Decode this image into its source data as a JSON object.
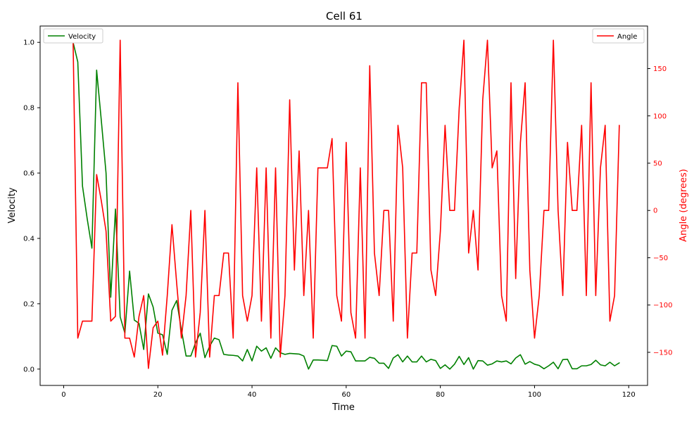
{
  "chart_data": {
    "type": "line",
    "title": "Cell 61",
    "xlabel": "Time",
    "ylabel_left": "Velocity",
    "ylabel_right": "Angle (degrees)",
    "xlim": [
      -5,
      124
    ],
    "ylim_left": [
      -0.05,
      1.05
    ],
    "ylim_right": [
      -185,
      195
    ],
    "x_ticks": [
      0,
      20,
      40,
      60,
      80,
      100,
      120
    ],
    "y_left_ticks": [
      0.0,
      0.2,
      0.4,
      0.6,
      0.8,
      1.0
    ],
    "y_left_tick_labels": [
      "0.0",
      "0.2",
      "0.4",
      "0.6",
      "0.8",
      "1.0"
    ],
    "y_right_ticks": [
      -150,
      -100,
      -50,
      0,
      50,
      100,
      150
    ],
    "grid": false,
    "colors": {
      "velocity": "#008000",
      "angle": "#ff0000"
    },
    "series": [
      {
        "name": "Velocity",
        "axis": "left",
        "legend_position": "top-left",
        "x": [
          1,
          2,
          3,
          4,
          5,
          6,
          7,
          8,
          9,
          10,
          11,
          12,
          13,
          14,
          15,
          16,
          17,
          18,
          19,
          20,
          21,
          22,
          23,
          24,
          25,
          26,
          27,
          28,
          29,
          30,
          31,
          32,
          33,
          34,
          35,
          36,
          37,
          38,
          39,
          40,
          41,
          42,
          43,
          44,
          45,
          46,
          47,
          48,
          49,
          50,
          51,
          52,
          53,
          54,
          55,
          56,
          57,
          58,
          59,
          60,
          61,
          62,
          63,
          64,
          65,
          66,
          67,
          68,
          69,
          70,
          71,
          72,
          73,
          74,
          75,
          76,
          77,
          78,
          79,
          80,
          81,
          82,
          83,
          84,
          85,
          86,
          87,
          88,
          89,
          90,
          91,
          92,
          93,
          94,
          95,
          96,
          97,
          98,
          99,
          100,
          101,
          102,
          103,
          104,
          105,
          106,
          107,
          108,
          109,
          110,
          111,
          112,
          113,
          114,
          115,
          116,
          117,
          118
        ],
        "values": [
          1.0,
          1.0,
          0.94,
          0.56,
          0.46,
          0.37,
          0.915,
          0.76,
          0.6,
          0.22,
          0.49,
          0.16,
          0.11,
          0.3,
          0.15,
          0.14,
          0.06,
          0.23,
          0.19,
          0.11,
          0.105,
          0.045,
          0.18,
          0.21,
          0.12,
          0.04,
          0.04,
          0.08,
          0.11,
          0.035,
          0.07,
          0.095,
          0.09,
          0.045,
          0.043,
          0.042,
          0.04,
          0.025,
          0.06,
          0.025,
          0.07,
          0.055,
          0.065,
          0.033,
          0.065,
          0.05,
          0.045,
          0.048,
          0.047,
          0.046,
          0.04,
          0.0,
          0.028,
          0.028,
          0.027,
          0.026,
          0.072,
          0.07,
          0.04,
          0.055,
          0.053,
          0.025,
          0.025,
          0.025,
          0.036,
          0.033,
          0.018,
          0.018,
          0.002,
          0.034,
          0.044,
          0.022,
          0.04,
          0.022,
          0.022,
          0.04,
          0.022,
          0.03,
          0.026,
          0.002,
          0.013,
          0.0,
          0.015,
          0.039,
          0.014,
          0.035,
          0.0,
          0.026,
          0.025,
          0.012,
          0.016,
          0.025,
          0.022,
          0.025,
          0.016,
          0.034,
          0.044,
          0.015,
          0.023,
          0.015,
          0.011,
          0.001,
          0.01,
          0.021,
          0.001,
          0.029,
          0.03,
          0.001,
          0.001,
          0.01,
          0.01,
          0.014,
          0.027,
          0.013,
          0.01,
          0.021,
          0.01,
          0.019
        ]
      },
      {
        "name": "Angle",
        "axis": "right",
        "legend_position": "top-right",
        "x": [
          1,
          2,
          3,
          4,
          5,
          6,
          7,
          8,
          9,
          10,
          11,
          12,
          13,
          14,
          15,
          16,
          17,
          18,
          19,
          20,
          21,
          22,
          23,
          24,
          25,
          26,
          27,
          28,
          29,
          30,
          31,
          32,
          33,
          34,
          35,
          36,
          37,
          38,
          39,
          40,
          41,
          42,
          43,
          44,
          45,
          46,
          47,
          48,
          49,
          50,
          51,
          52,
          53,
          54,
          55,
          56,
          57,
          58,
          59,
          60,
          61,
          62,
          63,
          64,
          65,
          66,
          67,
          68,
          69,
          70,
          71,
          72,
          73,
          74,
          75,
          76,
          77,
          78,
          79,
          80,
          81,
          82,
          83,
          84,
          85,
          86,
          87,
          88,
          89,
          90,
          91,
          92,
          93,
          94,
          95,
          96,
          97,
          98,
          99,
          100,
          101,
          102,
          103,
          104,
          105,
          106,
          107,
          108,
          109,
          110,
          111,
          112,
          113,
          114,
          115,
          116,
          117,
          118
        ],
        "values": [
          180,
          180,
          -135,
          -117,
          -117,
          -117,
          38,
          10,
          -22,
          -117,
          -112,
          180,
          -135,
          -135,
          -155,
          -112,
          -90,
          -167,
          -124,
          -117,
          -153,
          -90,
          -15,
          -77,
          -135,
          -90,
          0,
          -155,
          -108,
          0,
          -155,
          -90,
          -90,
          -45,
          -45,
          -135,
          135,
          -90,
          -117,
          -90,
          45,
          -117,
          45,
          -135,
          45,
          -155,
          -90,
          117,
          -63,
          63,
          -90,
          0,
          -135,
          45,
          45,
          45,
          76,
          -90,
          -117,
          72,
          -108,
          -135,
          45,
          -135,
          153,
          -45,
          -90,
          0,
          0,
          -117,
          90,
          45,
          -135,
          -45,
          -45,
          135,
          135,
          -63,
          -90,
          -22,
          90,
          0,
          0,
          108,
          180,
          -45,
          0,
          -63,
          117,
          180,
          45,
          63,
          -90,
          -117,
          135,
          -72,
          72,
          135,
          -63,
          -135,
          -90,
          0,
          0,
          180,
          0,
          -90,
          72,
          0,
          0,
          90,
          -90,
          135,
          -90,
          45,
          90,
          -117,
          -90,
          90
        ]
      }
    ]
  }
}
